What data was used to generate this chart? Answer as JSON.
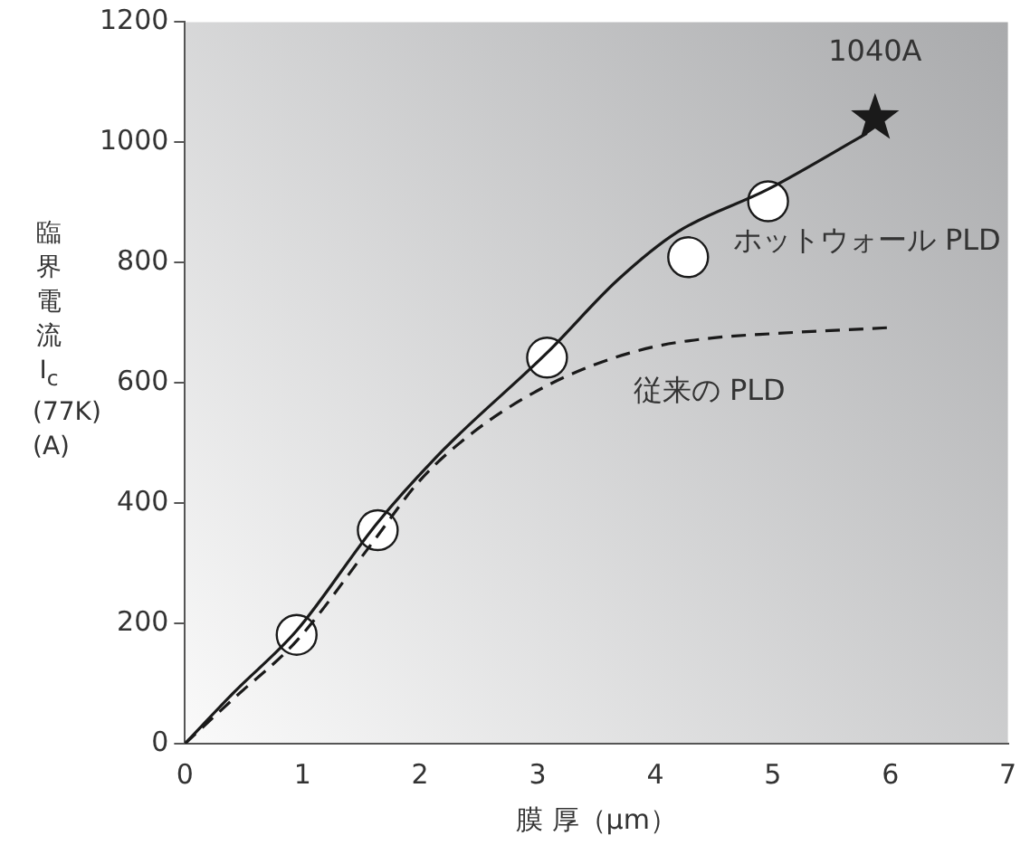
{
  "chart_data": {
    "type": "line",
    "xlabel": "膜 厚（μm）",
    "ylabel": "臨界電流 I$_{c}$ (77K) (A)",
    "xlim": [
      0,
      7
    ],
    "xticks": [
      0,
      1,
      2,
      3,
      4,
      5,
      6,
      7
    ],
    "ylim": [
      0,
      1200
    ],
    "yticks": [
      0,
      200,
      400,
      600,
      800,
      1000,
      1200
    ],
    "series": [
      {
        "name": "ホットウォール PLD",
        "line_style": "solid",
        "marker": "none",
        "color": "#1a1a1a",
        "x": [
          0,
          0.42,
          0.95,
          1.64,
          2.2,
          3.08,
          3.68,
          4.19,
          4.96,
          5.8
        ],
        "values": [
          0,
          86,
          188,
          368,
          489,
          650,
          771,
          851,
          922,
          1015
        ]
      },
      {
        "name": "従来の PLD",
        "line_style": "dashed",
        "marker": "none",
        "color": "#1a1a1a",
        "x": [
          0,
          0.42,
          0.95,
          1.59,
          2.0,
          2.46,
          2.97,
          3.48,
          3.99,
          4.5,
          5.01,
          6.0
        ],
        "values": [
          0,
          76,
          171,
          333,
          438,
          519,
          584,
          630,
          660,
          675,
          682,
          692
        ]
      },
      {
        "type": "scatter",
        "marker": "circle",
        "color": "#ffffff",
        "x": [
          0.95,
          1.64,
          3.08,
          4.28,
          4.96
        ],
        "values": [
          181,
          355,
          642,
          809,
          902
        ]
      },
      {
        "type": "scatter",
        "marker": "star",
        "color": "#1a1a1a",
        "x": [
          5.87
        ],
        "values": [
          1040
        ]
      }
    ],
    "annotations": [
      {
        "text": "1040A",
        "x": 5.87,
        "y": 1040
      }
    ]
  }
}
